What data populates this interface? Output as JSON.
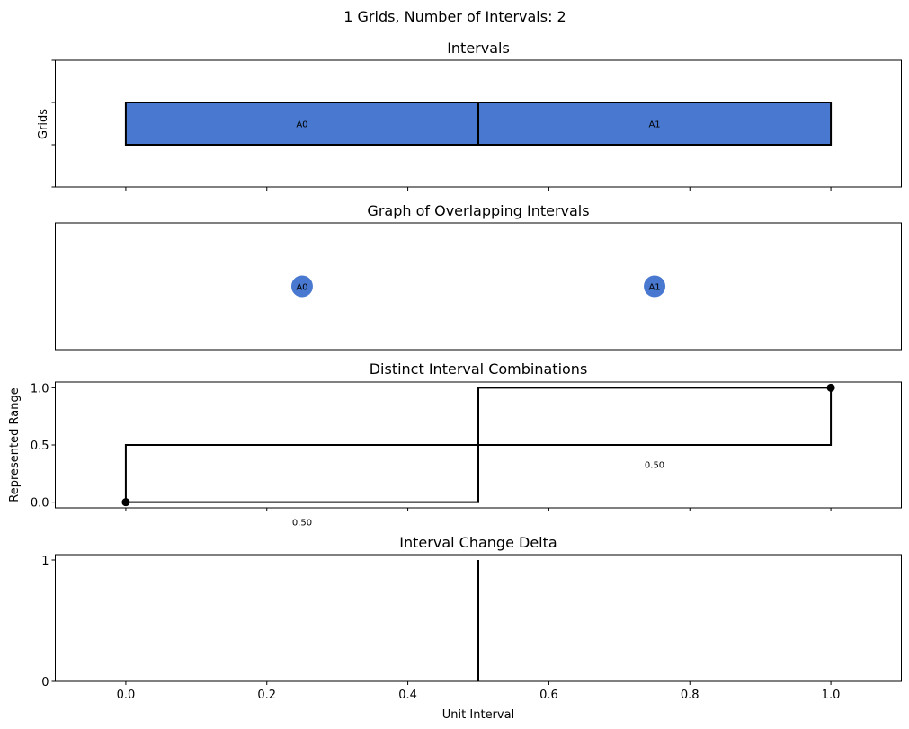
{
  "figure": {
    "suptitle": "1 Grids, Number of Intervals: 2",
    "x_axis": {
      "label": "Unit Interval",
      "ticks": [
        0.0,
        0.2,
        0.4,
        0.6,
        0.8,
        1.0
      ],
      "tick_labels": [
        "0.0",
        "0.2",
        "0.4",
        "0.6",
        "0.8",
        "1.0"
      ],
      "range": [
        -0.1,
        1.1
      ]
    }
  },
  "chart_data": [
    {
      "type": "bar",
      "title": "Intervals",
      "ylabel": "Grids",
      "intervals": [
        {
          "label": "A0",
          "start": 0.0,
          "end": 0.5,
          "grid": 0,
          "color": "#4878cf"
        },
        {
          "label": "A1",
          "start": 0.5,
          "end": 1.0,
          "grid": 0,
          "color": "#4878cf"
        }
      ]
    },
    {
      "type": "scatter",
      "title": "Graph of Overlapping Intervals",
      "nodes": [
        {
          "label": "A0",
          "x": 0.25,
          "color": "#4878cf"
        },
        {
          "label": "A1",
          "x": 0.75,
          "color": "#4878cf"
        }
      ],
      "edges": []
    },
    {
      "type": "line",
      "title": "Distinct Interval Combinations",
      "ylabel": "Represented Range",
      "ylim": [
        -0.05,
        1.05
      ],
      "yticks": [
        0.0,
        0.5,
        1.0
      ],
      "ytick_labels": [
        "0.0",
        "0.5",
        "1.0"
      ],
      "endpoints": [
        {
          "x": 0.0,
          "y": 0.0
        },
        {
          "x": 1.0,
          "y": 1.0
        }
      ],
      "combinations": [
        {
          "x_start": 0.0,
          "x_end": 0.5,
          "y_low": 0.0,
          "y_high": 0.5,
          "label": "0.50",
          "label_x": 0.25,
          "label_y": -0.17
        },
        {
          "x_start": 0.5,
          "x_end": 1.0,
          "y_low": 0.5,
          "y_high": 1.0,
          "label": "0.50",
          "label_x": 0.75,
          "label_y": 0.33
        }
      ]
    },
    {
      "type": "bar",
      "title": "Interval Change Delta",
      "ylim": [
        0,
        1
      ],
      "yticks": [
        0,
        1
      ],
      "ytick_labels": [
        "0",
        "1"
      ],
      "deltas": [
        {
          "x": 0.5,
          "value": 1
        }
      ]
    }
  ]
}
